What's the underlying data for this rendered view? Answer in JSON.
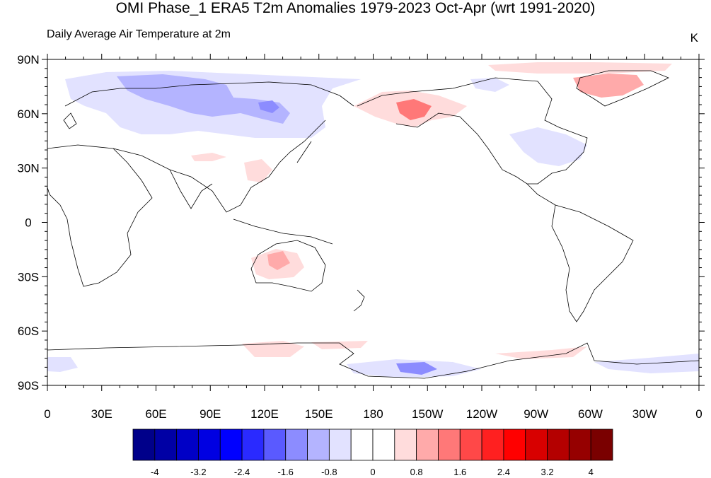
{
  "title": "OMI Phase_1 ERA5 T2m Anomalies 1979-2023 Oct-Apr (wrt 1991-2020)",
  "subtitle": "Daily Average Air Temperature at 2m",
  "units": "K",
  "lat_labels": [
    "90N",
    "60N",
    "30N",
    "0",
    "30S",
    "60S",
    "90S"
  ],
  "lon_labels": [
    "0",
    "30E",
    "60E",
    "90E",
    "120E",
    "150E",
    "180",
    "150W",
    "120W",
    "90W",
    "60W",
    "30W",
    "0"
  ],
  "colorbar": {
    "colors": [
      "#00008a",
      "#0000a5",
      "#0000c6",
      "#0000e2",
      "#0000ff",
      "#2a2aff",
      "#5a5aff",
      "#8c8cff",
      "#b4b4ff",
      "#e2e2ff",
      "#ffffff",
      "#ffffff",
      "#ffdcdc",
      "#ffaaaa",
      "#ff7878",
      "#ff4848",
      "#ff2020",
      "#ff0000",
      "#d80000",
      "#b40000",
      "#960000",
      "#7a0000"
    ],
    "tick_labels": [
      "-4",
      "-3.2",
      "-2.4",
      "-1.6",
      "-0.8",
      "0",
      "0.8",
      "1.6",
      "2.4",
      "3.2",
      "4"
    ]
  },
  "anomaly_regions": [
    {
      "name": "northern-eurasia-cooling",
      "color": "#e2e2ff",
      "level": -0.4
    },
    {
      "name": "siberia-cold-core",
      "color": "#b4b4ff",
      "level": -1.2
    },
    {
      "name": "alaska-warm",
      "color": "#ff7878",
      "level": 1.6
    },
    {
      "name": "greenland-warm",
      "color": "#ffaaaa",
      "level": 1.2
    },
    {
      "name": "australia-warm",
      "color": "#ffaaaa",
      "level": 1.0
    },
    {
      "name": "antarctic-cold",
      "color": "#8c8cff",
      "level": -1.6
    }
  ]
}
